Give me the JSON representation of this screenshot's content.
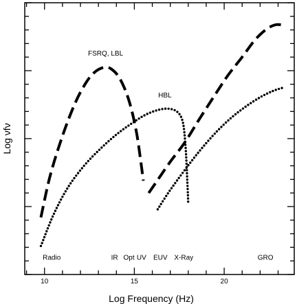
{
  "chart_data": {
    "type": "line",
    "title": "",
    "xlabel": "Log Frequency (Hz)",
    "ylabel": "Log νfν",
    "xlim": [
      8.9,
      23.9
    ],
    "ylim": [
      0,
      1
    ],
    "x_ticks": [
      10,
      15,
      20
    ],
    "y_ticks_labeled": false,
    "grid": false,
    "legend": "none",
    "series": [
      {
        "name": "FSRQ, LBL",
        "style": "dashed",
        "segments": [
          [
            [
              9.8,
              0.21
            ],
            [
              10.3,
              0.36
            ],
            [
              11,
              0.51
            ],
            [
              11.7,
              0.63
            ],
            [
              12.3,
              0.705
            ],
            [
              12.8,
              0.745
            ],
            [
              13.3,
              0.762
            ],
            [
              13.7,
              0.757
            ],
            [
              14.2,
              0.72
            ],
            [
              14.7,
              0.64
            ],
            [
              15.1,
              0.53
            ],
            [
              15.35,
              0.42
            ],
            [
              15.5,
              0.345
            ]
          ],
          [
            [
              15.8,
              0.3
            ],
            [
              16.3,
              0.348
            ],
            [
              17,
              0.415
            ],
            [
              17.8,
              0.485
            ],
            [
              18.6,
              0.57
            ],
            [
              19.4,
              0.652
            ],
            [
              20.2,
              0.732
            ],
            [
              21,
              0.8
            ],
            [
              21.7,
              0.862
            ],
            [
              22.3,
              0.9
            ],
            [
              22.8,
              0.918
            ],
            [
              23.2,
              0.918
            ],
            [
              23.4,
              0.91
            ]
          ]
        ]
      },
      {
        "name": "HBL",
        "style": "dotted",
        "segments": [
          [
            [
              9.8,
              0.105
            ],
            [
              10.5,
              0.22
            ],
            [
              11.3,
              0.32
            ],
            [
              12.2,
              0.4
            ],
            [
              13.1,
              0.462
            ],
            [
              14,
              0.515
            ],
            [
              14.9,
              0.558
            ],
            [
              15.6,
              0.587
            ],
            [
              16.3,
              0.605
            ],
            [
              16.9,
              0.61
            ],
            [
              17.4,
              0.598
            ],
            [
              17.7,
              0.56
            ],
            [
              17.85,
              0.47
            ],
            [
              17.95,
              0.34
            ],
            [
              18,
              0.26
            ]
          ],
          [
            [
              16.3,
              0.24
            ],
            [
              16.8,
              0.292
            ],
            [
              17.4,
              0.348
            ],
            [
              18.1,
              0.41
            ],
            [
              18.8,
              0.468
            ],
            [
              19.6,
              0.527
            ],
            [
              20.4,
              0.577
            ],
            [
              21.2,
              0.618
            ],
            [
              22,
              0.652
            ],
            [
              22.7,
              0.675
            ],
            [
              23.3,
              0.688
            ]
          ]
        ]
      }
    ],
    "annotations": [
      {
        "text": "FSRQ, LBL",
        "x": 13.4,
        "y": 0.805
      },
      {
        "text": "HBL",
        "x": 16.7,
        "y": 0.652
      },
      {
        "text": "Radio",
        "x": 10.4,
        "y": 0.054
      },
      {
        "text": "IR",
        "x": 13.9,
        "y": 0.054
      },
      {
        "text": "Opt",
        "x": 14.7,
        "y": 0.054
      },
      {
        "text": "UV",
        "x": 15.4,
        "y": 0.054
      },
      {
        "text": "EUV",
        "x": 16.45,
        "y": 0.054
      },
      {
        "text": "X-Ray",
        "x": 17.75,
        "y": 0.054
      },
      {
        "text": "GRO",
        "x": 22.3,
        "y": 0.054
      }
    ]
  }
}
